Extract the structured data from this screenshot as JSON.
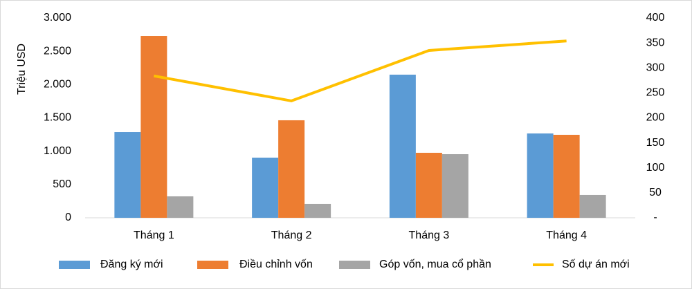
{
  "chart_data": {
    "type": "bar",
    "y_label": "Triệu USD",
    "categories": [
      "Tháng 1",
      "Tháng 2",
      "Tháng 3",
      "Tháng 4"
    ],
    "series": [
      {
        "name": "Đăng ký mới",
        "color": "#5b9bd5",
        "values": [
          1287,
          903,
          2149,
          1266
        ]
      },
      {
        "name": "Điều chỉnh vốn",
        "color": "#ed7d31",
        "values": [
          2730,
          1464,
          976,
          1246
        ]
      },
      {
        "name": "Góp vốn, mua cổ phần",
        "color": "#a5a5a5",
        "values": [
          322,
          208,
          955,
          343
        ]
      },
      {
        "name": "Số dự án mới",
        "color": "#ffc000",
        "type": "line",
        "axis": "y2",
        "values": [
          284,
          234,
          335,
          354
        ]
      }
    ],
    "ylim": [
      0,
      3000
    ],
    "yticks": [
      0,
      500,
      {
        "value": 1000,
        "label": "1.000"
      },
      {
        "value": 1500,
        "label": "1.500"
      },
      {
        "value": 2000,
        "label": "2.000"
      },
      {
        "value": 2500,
        "label": "2.500"
      },
      {
        "value": 3000,
        "label": "3.000"
      }
    ],
    "y2lim": [
      0,
      400
    ],
    "y2ticks": [
      {
        "value": 0,
        "label": "-"
      },
      50,
      100,
      150,
      200,
      250,
      300,
      350,
      400
    ],
    "legend": "bottom"
  }
}
